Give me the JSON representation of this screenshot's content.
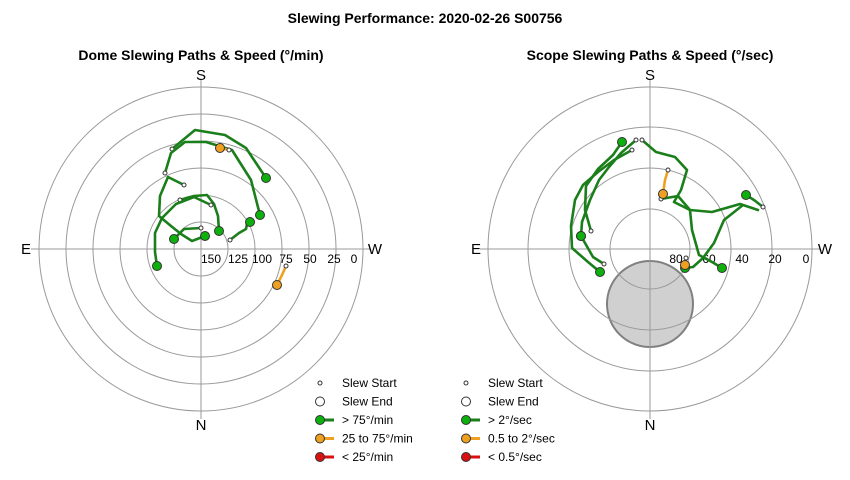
{
  "title": "Slewing Performance: 2020-02-26 S00756",
  "colors": {
    "fast": "#0db00d",
    "mid": "#f0a020",
    "slow": "#d81010",
    "path_fast": "#1a7f1a",
    "path_mid": "#f0a020",
    "path_slow": "#d81010",
    "circle": "#9a9a9a",
    "blocked": "#d0d0d0"
  },
  "chart_data": [
    {
      "type": "polar",
      "title": "Dome Slewing Paths & Speed (°/min)",
      "cardinals": {
        "top": "S",
        "bottom": "N",
        "left": "E",
        "right": "W"
      },
      "r_ticks": [
        "150",
        "125",
        "100",
        "75",
        "50",
        "25",
        "0"
      ],
      "r_axis_range": [
        150,
        0
      ],
      "legend": [
        {
          "kind": "start",
          "label": "Slew Start"
        },
        {
          "kind": "end",
          "label": "Slew End"
        },
        {
          "kind": "fast",
          "label": "> 75°/min"
        },
        {
          "kind": "mid",
          "label": "25 to 75°/min"
        },
        {
          "kind": "slow",
          "label": "< 25°/min"
        }
      ],
      "slews": [
        {
          "speed": "fast",
          "path": [
            [
              172,
              149
            ],
            [
              195,
              130
            ],
            [
              225,
              135
            ],
            [
              246,
              148
            ],
            [
              266,
              178
            ]
          ]
        },
        {
          "speed": "fast",
          "path": [
            [
              165,
              173
            ],
            [
              171,
              153
            ],
            [
              185,
              142
            ],
            [
              206,
              142
            ],
            [
              232,
              150
            ],
            [
              251,
              180
            ],
            [
              260,
              215
            ]
          ]
        },
        {
          "speed": "fast",
          "path": [
            [
              184,
              185
            ],
            [
              168,
              177
            ],
            [
              160,
              196
            ],
            [
              159,
              216
            ],
            [
              171,
              226
            ],
            [
              181,
              234
            ],
            [
              192,
              241
            ],
            [
              205,
              236
            ]
          ]
        },
        {
          "speed": "fast",
          "path": [
            [
              180,
              200
            ],
            [
              194,
              196
            ],
            [
              207,
              195
            ],
            [
              214,
              204
            ],
            [
              218,
              216
            ],
            [
              219,
              231
            ]
          ]
        },
        {
          "speed": "fast",
          "path": [
            [
              211,
              205
            ],
            [
              194,
              197
            ],
            [
              176,
              204
            ],
            [
              162,
              218
            ],
            [
              155,
              233
            ],
            [
              155,
              252
            ],
            [
              157,
              266
            ]
          ]
        },
        {
          "speed": "fast",
          "path": [
            [
              201,
              228
            ],
            [
              184,
              229
            ],
            [
              174,
              239
            ]
          ]
        },
        {
          "speed": "fast",
          "path": [
            [
              230,
              240
            ],
            [
              239,
              233
            ],
            [
              246,
              229
            ],
            [
              247,
              224
            ],
            [
              250,
              222
            ]
          ]
        },
        {
          "speed": "mid",
          "path": [
            [
              229,
              150
            ],
            [
              220,
              148
            ]
          ]
        },
        {
          "speed": "mid",
          "path": [
            [
              286,
              266
            ],
            [
              282,
              275
            ],
            [
              277,
              285
            ]
          ]
        }
      ]
    },
    {
      "type": "polar",
      "title": "Scope Slewing Paths & Speed (°/sec)",
      "cardinals": {
        "top": "S",
        "bottom": "N",
        "left": "E",
        "right": "W"
      },
      "r_ticks": [
        "80",
        "60",
        "40",
        "20",
        "0"
      ],
      "r_axis_range": [
        90,
        0
      ],
      "blocked_region": true,
      "legend": [
        {
          "kind": "start",
          "label": "Slew Start"
        },
        {
          "kind": "end",
          "label": "Slew End"
        },
        {
          "kind": "fast",
          "label": "> 2°/sec"
        },
        {
          "kind": "mid",
          "label": "0.5 to 2°/sec"
        },
        {
          "kind": "slow",
          "label": "< 0.5°/sec"
        }
      ],
      "slews": [
        {
          "speed": "fast",
          "path": [
            [
              591,
              231
            ],
            [
              585,
              210
            ],
            [
              586,
              186
            ],
            [
              598,
              169
            ],
            [
              613,
              155
            ],
            [
              622,
              142
            ]
          ]
        },
        {
          "speed": "fast",
          "path": [
            [
              636,
              140
            ],
            [
              621,
              153
            ],
            [
              609,
              167
            ],
            [
              599,
              180
            ],
            [
              590,
              200
            ],
            [
              582,
              222
            ],
            [
              581,
              236
            ]
          ]
        },
        {
          "speed": "fast",
          "path": [
            [
              632,
              150
            ],
            [
              614,
              160
            ],
            [
              598,
              172
            ],
            [
              583,
              185
            ],
            [
              575,
              200
            ],
            [
              571,
              226
            ],
            [
              572,
              248
            ],
            [
              588,
              262
            ],
            [
              600,
              272
            ]
          ]
        },
        {
          "speed": "fast",
          "path": [
            [
              642,
              140
            ],
            [
              656,
              152
            ],
            [
              675,
              157
            ],
            [
              687,
              170
            ],
            [
              681,
              190
            ],
            [
              674,
              202
            ],
            [
              690,
              210
            ],
            [
              712,
              212
            ],
            [
              740,
              204
            ],
            [
              758,
              210
            ],
            [
              743,
              205
            ],
            [
              724,
              220
            ],
            [
              714,
              243
            ],
            [
              703,
              258
            ],
            [
              693,
              267
            ],
            [
              685,
              268
            ]
          ]
        },
        {
          "speed": "fast",
          "path": [
            [
              661,
              199
            ],
            [
              678,
              196
            ],
            [
              690,
              210
            ],
            [
              692,
              230
            ],
            [
              699,
              255
            ],
            [
              712,
              262
            ],
            [
              722,
              268
            ]
          ]
        },
        {
          "speed": "fast",
          "path": [
            [
              763,
              207
            ],
            [
              754,
              200
            ],
            [
              746,
              195
            ]
          ]
        },
        {
          "speed": "fast",
          "path": [
            [
              604,
              264
            ],
            [
              593,
              257
            ],
            [
              581,
              236
            ]
          ]
        },
        {
          "speed": "mid",
          "path": [
            [
              668,
              170
            ],
            [
              665,
              180
            ],
            [
              663,
              194
            ]
          ]
        },
        {
          "speed": "mid",
          "path": [
            [
              686,
              258
            ],
            [
              685,
              265
            ]
          ]
        }
      ]
    }
  ]
}
